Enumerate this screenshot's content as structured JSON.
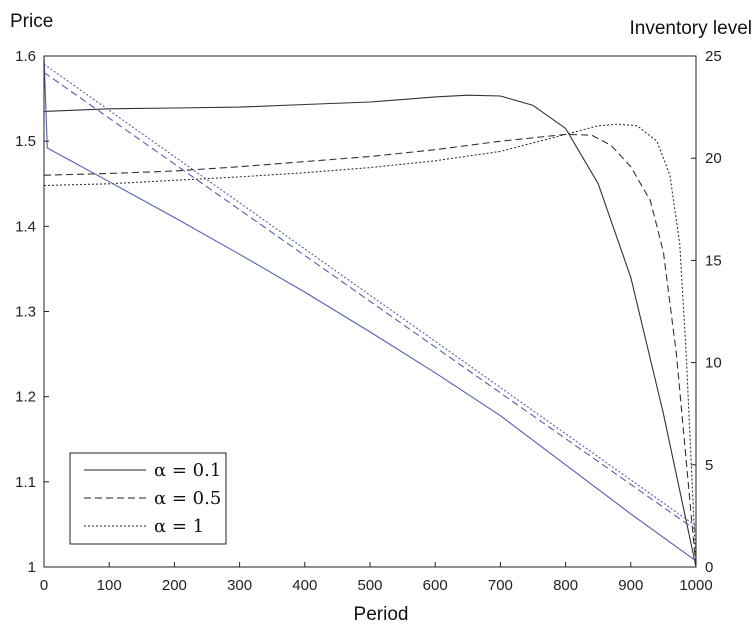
{
  "chart_data": {
    "type": "line",
    "x_axis": {
      "label": "Period",
      "range": [
        0,
        1000
      ],
      "ticks": [
        0,
        100,
        200,
        300,
        400,
        500,
        600,
        700,
        800,
        900,
        1000
      ]
    },
    "y_left": {
      "label": "Price",
      "range": [
        1,
        1.6
      ],
      "ticks": [
        1,
        1.1,
        1.2,
        1.3,
        1.4,
        1.5,
        1.6
      ]
    },
    "y_right": {
      "label": "Inventory level",
      "range": [
        0,
        25
      ],
      "ticks": [
        0,
        5,
        10,
        15,
        20,
        25
      ]
    },
    "grid": false,
    "legend": {
      "position": "bottom-left",
      "entries": [
        {
          "label": "α = 0.1",
          "dash": "solid"
        },
        {
          "label": "α = 0.5",
          "dash": "dashed"
        },
        {
          "label": "α = 1",
          "dash": "dotted"
        }
      ]
    },
    "colors": {
      "price": "#333333",
      "inventory": "#5560b0"
    },
    "series": [
      {
        "legend_index": 0,
        "axis": "left",
        "quantity": "price",
        "x": [
          0,
          100,
          200,
          300,
          400,
          500,
          600,
          650,
          700,
          750,
          800,
          850,
          900,
          950,
          1000
        ],
        "y": [
          1.535,
          1.538,
          1.539,
          1.54,
          1.543,
          1.546,
          1.552,
          1.554,
          1.553,
          1.542,
          1.515,
          1.45,
          1.34,
          1.18,
          1.0
        ]
      },
      {
        "legend_index": 1,
        "axis": "left",
        "quantity": "price",
        "x": [
          0,
          100,
          200,
          300,
          400,
          500,
          600,
          700,
          800,
          840,
          870,
          900,
          930,
          950,
          970,
          1000
        ],
        "y": [
          1.46,
          1.462,
          1.465,
          1.47,
          1.476,
          1.482,
          1.49,
          1.5,
          1.508,
          1.507,
          1.495,
          1.47,
          1.43,
          1.37,
          1.25,
          1.0
        ]
      },
      {
        "legend_index": 2,
        "axis": "left",
        "quantity": "price",
        "x": [
          0,
          100,
          200,
          300,
          400,
          500,
          600,
          700,
          800,
          850,
          880,
          910,
          940,
          960,
          975,
          985,
          1000
        ],
        "y": [
          1.448,
          1.45,
          1.454,
          1.458,
          1.463,
          1.469,
          1.477,
          1.488,
          1.508,
          1.518,
          1.52,
          1.518,
          1.5,
          1.46,
          1.38,
          1.25,
          1.0
        ]
      },
      {
        "legend_index": 0,
        "axis": "right",
        "quantity": "inventory",
        "x": [
          0,
          5,
          100,
          200,
          300,
          400,
          500,
          600,
          700,
          800,
          900,
          1000
        ],
        "y": [
          25,
          20.5,
          18.85,
          17.1,
          15.3,
          13.45,
          11.5,
          9.5,
          7.4,
          5.0,
          2.6,
          0.3
        ]
      },
      {
        "legend_index": 1,
        "axis": "right",
        "quantity": "inventory",
        "x": [
          0,
          1000
        ],
        "y": [
          24.2,
          1.8
        ]
      },
      {
        "legend_index": 2,
        "axis": "right",
        "quantity": "inventory",
        "x": [
          0,
          1000
        ],
        "y": [
          24.6,
          2.0
        ]
      }
    ]
  }
}
